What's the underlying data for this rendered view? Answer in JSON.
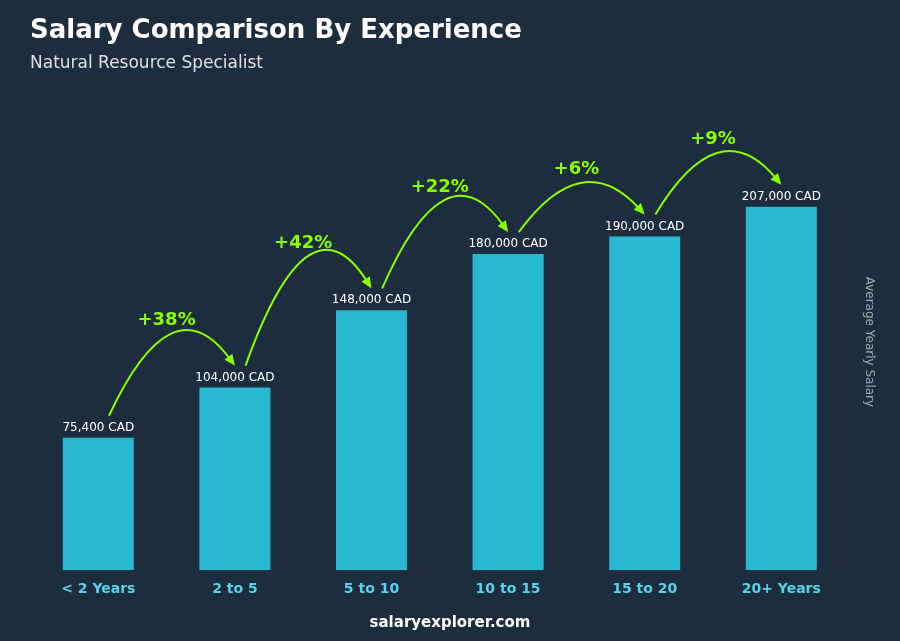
{
  "chart_data": {
    "type": "bar",
    "title": "Salary Comparison By Experience",
    "subtitle": "Natural Resource Specialist",
    "ylabel": "Average Yearly Salary",
    "categories": [
      "< 2 Years",
      "2 to 5",
      "5 to 10",
      "10 to 15",
      "15 to 20",
      "20+ Years"
    ],
    "values": [
      75400,
      104000,
      148000,
      180000,
      190000,
      207000
    ],
    "value_labels": [
      "75,400 CAD",
      "104,000 CAD",
      "148,000 CAD",
      "180,000 CAD",
      "190,000 CAD",
      "207,000 CAD"
    ],
    "data_labels": true,
    "color": "#29b8d4",
    "ylim": [
      0,
      260000
    ],
    "tick_labels": "x",
    "grid": false,
    "annotations": [
      {
        "text": "+38%",
        "from": "< 2 Years",
        "to": "2 to 5"
      },
      {
        "text": "+42%",
        "from": "2 to 5",
        "to": "5 to 10"
      },
      {
        "text": "+22%",
        "from": "5 to 10",
        "to": "10 to 15"
      },
      {
        "text": "+6%",
        "from": "10 to 15",
        "to": "15 to 20"
      },
      {
        "text": "+9%",
        "from": "15 to 20",
        "to": "20+ Years"
      }
    ],
    "footer": "salaryexplorer.com"
  }
}
